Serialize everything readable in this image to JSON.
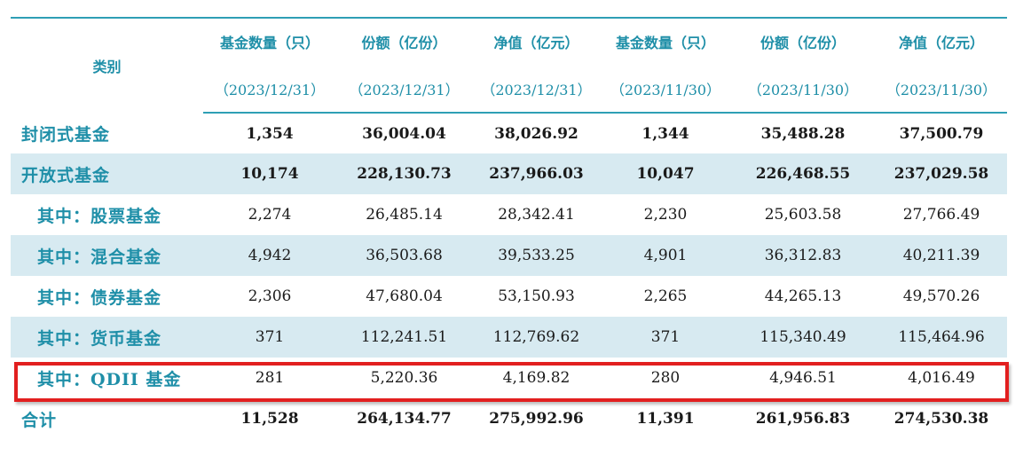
{
  "header": {
    "category": "类别",
    "columns": [
      {
        "title": "基金数量（只）",
        "date": "（2023/12/31）"
      },
      {
        "title": "份额（亿份）",
        "date": "（2023/12/31）"
      },
      {
        "title": "净值（亿元）",
        "date": "（2023/12/31）"
      },
      {
        "title": "基金数量（只）",
        "date": "（2023/11/30）"
      },
      {
        "title": "份额（亿份）",
        "date": "（2023/11/30）"
      },
      {
        "title": "净值（亿元）",
        "date": "（2023/11/30）"
      }
    ]
  },
  "rows": [
    {
      "category": "封闭式基金",
      "values": [
        "1,354",
        "36,004.04",
        "38,026.92",
        "1,344",
        "35,488.28",
        "37,500.79"
      ]
    },
    {
      "category": "开放式基金",
      "values": [
        "10,174",
        "228,130.73",
        "237,966.03",
        "10,047",
        "226,468.55",
        "237,029.58"
      ]
    },
    {
      "category": "其中：股票基金",
      "values": [
        "2,274",
        "26,485.14",
        "28,342.41",
        "2,230",
        "25,603.58",
        "27,766.49"
      ]
    },
    {
      "category": "其中：混合基金",
      "values": [
        "4,942",
        "36,503.68",
        "39,533.25",
        "4,901",
        "36,312.83",
        "40,211.39"
      ]
    },
    {
      "category": "其中：债券基金",
      "values": [
        "2,306",
        "47,680.04",
        "53,150.93",
        "2,265",
        "44,265.13",
        "49,570.26"
      ]
    },
    {
      "category": "其中：货币基金",
      "values": [
        "371",
        "112,241.51",
        "112,769.62",
        "371",
        "115,340.49",
        "115,464.96"
      ]
    },
    {
      "category": "其中：QDII 基金",
      "values": [
        "281",
        "5,220.36",
        "4,169.82",
        "280",
        "4,946.51",
        "4,016.49"
      ]
    },
    {
      "category": "合计",
      "values": [
        "11,528",
        "264,134.77",
        "275,992.96",
        "11,391",
        "261,956.83",
        "274,530.38"
      ]
    }
  ],
  "colors": {
    "accent": "#1f8fa8",
    "rule": "#2e9fb5",
    "shade": "#d7eaf1",
    "highlight": "#e21f1f"
  }
}
